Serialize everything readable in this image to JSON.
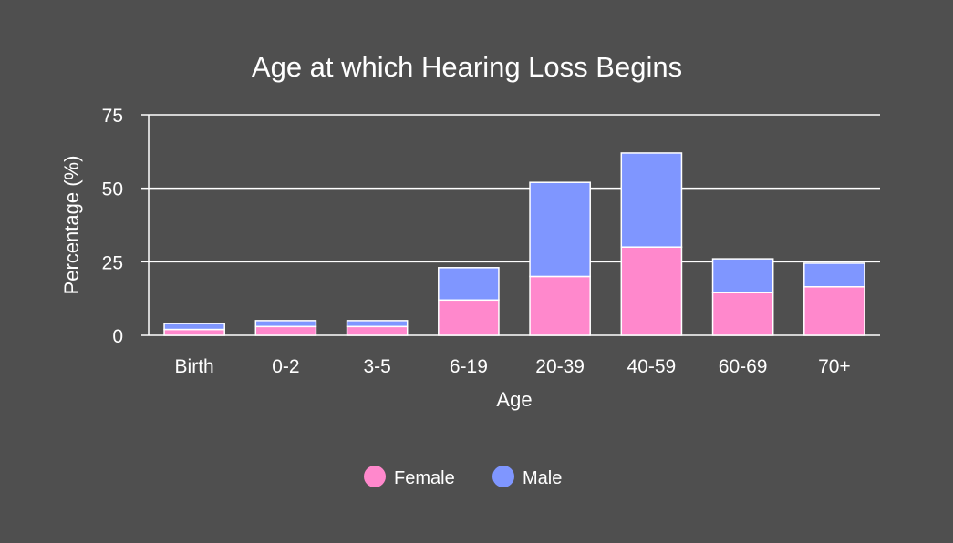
{
  "chart_data": {
    "type": "bar",
    "stacked": true,
    "title": "Age at which Hearing Loss Begins",
    "xlabel": "Age",
    "ylabel": "Percentage (%)",
    "ylim": [
      0,
      75
    ],
    "yticks": [
      0,
      25,
      50,
      75
    ],
    "grid": true,
    "legend_position": "bottom",
    "categories": [
      "Birth",
      "0-2",
      "3-5",
      "6-19",
      "20-39",
      "40-59",
      "60-69",
      "70+"
    ],
    "series": [
      {
        "name": "Female",
        "color": "#ff88cc",
        "values": [
          2,
          3,
          3,
          12,
          20,
          30,
          14.5,
          16.5
        ]
      },
      {
        "name": "Male",
        "color": "#7f96ff",
        "values": [
          2,
          2,
          2,
          11,
          32,
          32,
          11.5,
          8
        ]
      }
    ],
    "background": "#4f4f4f",
    "bar_stroke": "#ffffff",
    "gridline_color": "#ffffff"
  }
}
